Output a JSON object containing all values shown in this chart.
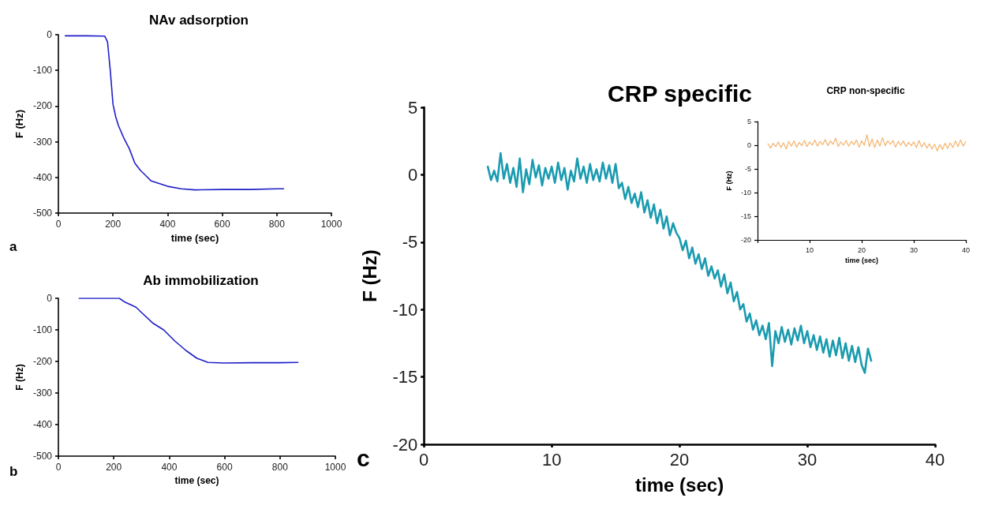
{
  "chart_data": [
    {
      "type": "line",
      "title": "NAv adsorption",
      "xlabel": "time (sec)",
      "ylabel": "F (Hz)",
      "annotations": [
        "a"
      ],
      "xlim": [
        0,
        1000
      ],
      "xticks": [
        0,
        200,
        400,
        600,
        800,
        1000
      ],
      "ylim": [
        -500,
        0
      ],
      "yticks": [
        -500,
        -400,
        -300,
        -200,
        -100,
        0
      ],
      "marker": "none",
      "line_style": "solid",
      "series": [
        {
          "color": "#1f1fc8",
          "x": [
            25,
            100,
            170,
            180,
            190,
            200,
            210,
            220,
            240,
            260,
            280,
            300,
            320,
            340,
            360,
            400,
            450,
            500,
            600,
            700,
            800,
            825
          ],
          "values": [
            -3,
            -3,
            -4,
            -20,
            -100,
            -195,
            -230,
            -255,
            -290,
            -320,
            -360,
            -380,
            -395,
            -410,
            -415,
            -425,
            -432,
            -435,
            -434,
            -434,
            -432,
            -432
          ]
        }
      ]
    },
    {
      "type": "line",
      "title": "Ab immobilization",
      "xlabel": "time (sec)",
      "ylabel": "F (Hz)",
      "annotations": [
        "b"
      ],
      "xlim": [
        0,
        1000
      ],
      "xticks": [
        0,
        200,
        400,
        600,
        800,
        1000
      ],
      "ylim": [
        -500,
        0
      ],
      "yticks": [
        -500,
        -400,
        -300,
        -200,
        -100,
        0
      ],
      "marker": "none",
      "line_style": "solid",
      "series": [
        {
          "color": "#1f1fc8",
          "x": [
            75,
            150,
            220,
            240,
            260,
            280,
            300,
            340,
            380,
            420,
            460,
            500,
            540,
            600,
            700,
            800,
            865
          ],
          "values": [
            0,
            0,
            0,
            -12,
            -20,
            -28,
            -45,
            -78,
            -100,
            -135,
            -165,
            -190,
            -203,
            -205,
            -204,
            -204,
            -203
          ]
        }
      ]
    },
    {
      "type": "line",
      "title": "CRP specific",
      "xlabel": "time (sec)",
      "ylabel": "F (Hz)",
      "annotations": [
        "c"
      ],
      "xlim": [
        0,
        40
      ],
      "xticks": [
        0,
        10,
        20,
        30,
        40
      ],
      "ylim": [
        -20,
        5
      ],
      "yticks": [
        -20,
        -15,
        -10,
        -5,
        0,
        5
      ],
      "marker": "none",
      "line_style": "solid",
      "series": [
        {
          "color": "#1a9bb0",
          "x": [
            5,
            5.25,
            5.5,
            5.75,
            6,
            6.25,
            6.5,
            6.75,
            7,
            7.25,
            7.5,
            7.75,
            8,
            8.25,
            8.5,
            8.75,
            9,
            9.25,
            9.5,
            9.75,
            10,
            10.25,
            10.5,
            10.75,
            11,
            11.25,
            11.5,
            11.75,
            12,
            12.25,
            12.5,
            12.75,
            13,
            13.25,
            13.5,
            13.75,
            14,
            14.25,
            14.5,
            14.75,
            15,
            15.25,
            15.5,
            15.75,
            16,
            16.25,
            16.5,
            16.75,
            17,
            17.25,
            17.5,
            17.75,
            18,
            18.25,
            18.5,
            18.75,
            19,
            19.25,
            19.5,
            19.75,
            20,
            20.25,
            20.5,
            20.75,
            21,
            21.25,
            21.5,
            21.75,
            22,
            22.25,
            22.5,
            22.75,
            23,
            23.25,
            23.5,
            23.75,
            24,
            24.25,
            24.5,
            24.75,
            25,
            25.25,
            25.5,
            25.75,
            26,
            26.25,
            26.5,
            26.75,
            27,
            27.25,
            27.5,
            27.75,
            28,
            28.25,
            28.5,
            28.75,
            29,
            29.25,
            29.5,
            29.75,
            30,
            30.25,
            30.5,
            30.75,
            31,
            31.25,
            31.5,
            31.75,
            32,
            32.25,
            32.5,
            32.75,
            33,
            33.25,
            33.5,
            33.75,
            34,
            34.25,
            34.5,
            34.75,
            35
          ],
          "values": [
            0.6,
            -0.4,
            0.3,
            -0.5,
            1.6,
            -0.3,
            0.8,
            -0.6,
            0.5,
            -0.9,
            1.2,
            -1.3,
            0.4,
            -0.7,
            1.1,
            -0.2,
            0.7,
            -0.8,
            0.5,
            -0.3,
            0.6,
            -0.6,
            0.9,
            -0.4,
            0.5,
            -1.1,
            0.3,
            -0.5,
            1.2,
            -0.3,
            0.6,
            -0.6,
            0.8,
            -0.4,
            0.4,
            -0.5,
            0.9,
            -0.3,
            0.7,
            -0.6,
            0.8,
            -1,
            -0.6,
            -1.8,
            -0.9,
            -2.1,
            -1.4,
            -2.4,
            -1.3,
            -2.8,
            -1.9,
            -3.2,
            -2.2,
            -3.6,
            -2.6,
            -4,
            -3.1,
            -4.5,
            -3.6,
            -4.3,
            -4.7,
            -5.6,
            -4.9,
            -6.2,
            -5.4,
            -6.6,
            -5.9,
            -7,
            -6.2,
            -7.5,
            -6.8,
            -7.7,
            -7.1,
            -8.3,
            -7.4,
            -8.8,
            -8,
            -9.4,
            -8.7,
            -10,
            -9.6,
            -10.9,
            -10.3,
            -11.5,
            -10.8,
            -11.9,
            -11.2,
            -12.2,
            -11,
            -14.2,
            -11.6,
            -12.5,
            -11.3,
            -12.4,
            -11.5,
            -12.6,
            -11.4,
            -12.3,
            -11.2,
            -12.5,
            -11.6,
            -12.8,
            -11.9,
            -13,
            -12,
            -13.2,
            -12.2,
            -13.5,
            -12.3,
            -13.4,
            -12.1,
            -13.6,
            -12.5,
            -13.8,
            -12.7,
            -13.9,
            -12.8,
            -14.1,
            -14.7,
            -12.9,
            -13.8
          ]
        }
      ]
    },
    {
      "type": "line",
      "title": "CRP non-specific",
      "xlabel": "time (sec)",
      "ylabel": "F (Hz)",
      "xlim": [
        0,
        40
      ],
      "xticks": [
        {
          "value": 0,
          "label": null
        },
        10,
        20,
        30,
        40
      ],
      "ylim": [
        -20,
        5
      ],
      "yticks": [
        -20,
        -15,
        -10,
        -5,
        0,
        5
      ],
      "marker": "none",
      "line_style": "solid",
      "series": [
        {
          "color": "#f5b26b",
          "x": [
            2,
            2.5,
            3,
            3.5,
            4,
            4.5,
            5,
            5.5,
            6,
            6.5,
            7,
            7.5,
            8,
            8.5,
            9,
            9.5,
            10,
            10.5,
            11,
            11.5,
            12,
            12.5,
            13,
            13.5,
            14,
            14.5,
            15,
            15.5,
            16,
            16.5,
            17,
            17.5,
            18,
            18.5,
            19,
            19.5,
            20,
            20.5,
            21,
            21.5,
            22,
            22.5,
            23,
            23.5,
            24,
            24.5,
            25,
            25.5,
            26,
            26.5,
            27,
            27.5,
            28,
            28.5,
            29,
            29.5,
            30,
            30.5,
            31,
            31.5,
            32,
            32.5,
            33,
            33.5,
            34,
            34.5,
            35,
            35.5,
            36,
            36.5,
            37,
            37.5,
            38,
            38.5,
            39,
            39.5,
            40
          ],
          "values": [
            0.3,
            -0.6,
            0.4,
            -0.3,
            0.7,
            -0.5,
            0.5,
            -0.8,
            0.8,
            -0.2,
            0.9,
            -0.4,
            0.6,
            -0.1,
            1,
            -0.3,
            0.7,
            0,
            1.1,
            -0.2,
            0.8,
            0.1,
            1.2,
            -0.1,
            0.9,
            0.2,
            1.5,
            -0.3,
            0.7,
            0,
            1,
            -0.2,
            0.8,
            0.1,
            1.1,
            -0.4,
            0.9,
            0,
            2.2,
            -0.3,
            1.3,
            -0.5,
            1.1,
            -0.2,
            1.6,
            -0.1,
            0.9,
            0.2,
            1,
            -0.4,
            0.8,
            0,
            0.9,
            -0.3,
            0.6,
            -0.1,
            0.7,
            -0.5,
            1,
            -0.4,
            0.5,
            -0.6,
            0.3,
            -0.8,
            0.2,
            -1.2,
            0.1,
            -0.9,
            0.4,
            -0.7,
            0.5,
            -0.5,
            0.9,
            -0.3,
            1.1,
            -0.2,
            0.8
          ]
        }
      ]
    }
  ]
}
